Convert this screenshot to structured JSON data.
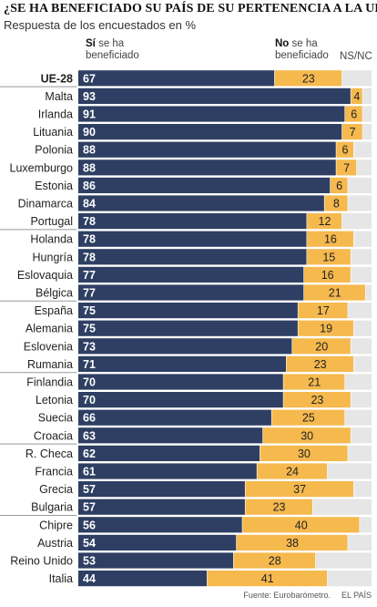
{
  "title": "¿SE HA BENEFICIADO SU PAÍS DE SU PERTENENCIA A LA UE?",
  "subtitle": "Respuesta de los encuestados en %",
  "legend": {
    "yes_bold": "Sí",
    "yes_rest_1": " se ha",
    "yes_rest_2": "beneficiado",
    "no_bold": "No",
    "no_rest_1": " se ha",
    "no_rest_2": "beneficiado",
    "nsnc": "NS/NC"
  },
  "source": "Fuente: Eurobarómetro.",
  "credit": "EL PAÍS",
  "colors": {
    "yes": "#2e3f63",
    "no": "#f5b94e",
    "nsnc": "#e6e6e6"
  },
  "chart_data": {
    "type": "bar",
    "orientation": "horizontal",
    "stacked": true,
    "categories": [
      "UE-28",
      "Malta",
      "Irlanda",
      "Lituania",
      "Polonia",
      "Luxemburgo",
      "Estonia",
      "Dinamarca",
      "Portugal",
      "Holanda",
      "Hungría",
      "Eslovaquia",
      "Bélgica",
      "España",
      "Alemania",
      "Eslovenia",
      "Rumania",
      "Finlandia",
      "Letonia",
      "Suecia",
      "Croacia",
      "R. Checa",
      "Francia",
      "Grecia",
      "Bulgaria",
      "Chipre",
      "Austria",
      "Reino Unido",
      "Italia"
    ],
    "series": [
      {
        "name": "Sí se ha beneficiado",
        "values": [
          67,
          93,
          91,
          90,
          88,
          88,
          86,
          84,
          78,
          78,
          78,
          77,
          77,
          75,
          75,
          73,
          71,
          70,
          70,
          66,
          63,
          62,
          61,
          57,
          57,
          56,
          54,
          53,
          44
        ]
      },
      {
        "name": "No se ha beneficiado",
        "values": [
          23,
          4,
          6,
          7,
          6,
          7,
          6,
          8,
          12,
          16,
          15,
          16,
          21,
          17,
          19,
          20,
          23,
          21,
          23,
          25,
          30,
          30,
          24,
          37,
          23,
          40,
          38,
          28,
          41
        ]
      },
      {
        "name": "NS/NC",
        "values": [
          10,
          3,
          3,
          3,
          6,
          5,
          8,
          8,
          10,
          6,
          7,
          7,
          2,
          8,
          6,
          7,
          6,
          9,
          7,
          9,
          7,
          8,
          15,
          6,
          20,
          4,
          8,
          19,
          15
        ]
      }
    ],
    "xlim": [
      0,
      100
    ]
  }
}
